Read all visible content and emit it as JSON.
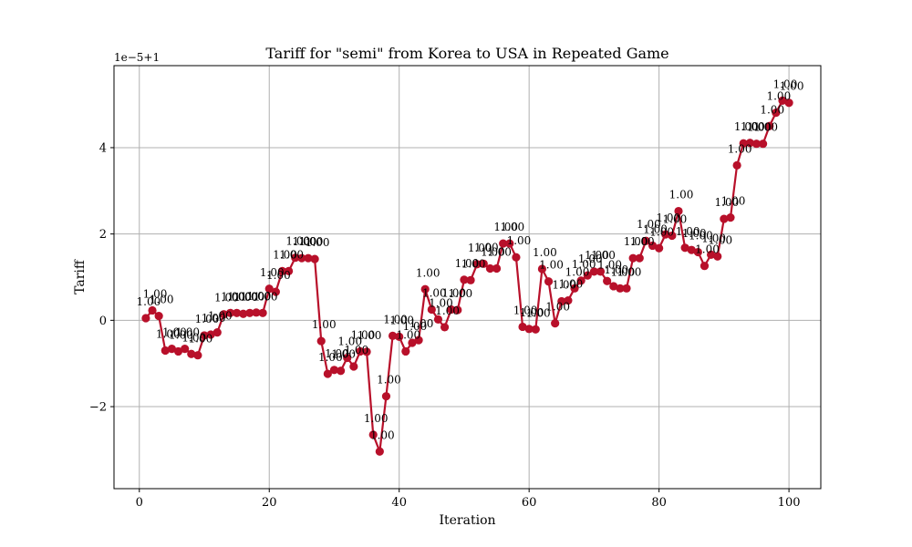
{
  "chart_data": {
    "type": "line",
    "title": "Tariff for \"semi\" from Korea to USA in Repeated Game",
    "xlabel": "Iteration",
    "ylabel": "Tariff",
    "y_offset_text": "1e−5+1",
    "xlim": [
      -3.9,
      104.9
    ],
    "ylim": [
      -3.9,
      5.9
    ],
    "x_ticks": [
      0,
      20,
      40,
      60,
      80,
      100
    ],
    "x_tick_labels": [
      "0",
      "20",
      "40",
      "60",
      "80",
      "100"
    ],
    "y_ticks": [
      -2,
      0,
      2,
      4
    ],
    "y_tick_labels": [
      "−2",
      "0",
      "2",
      "4"
    ],
    "grid": true,
    "line_color": "#b8102a",
    "point_label": "1.00",
    "series": [
      {
        "x": [
          1,
          2,
          3,
          4,
          5,
          6,
          7,
          8,
          9,
          10,
          11,
          12,
          13,
          14,
          15,
          16,
          17,
          18,
          19,
          20,
          21,
          22,
          23,
          24,
          25,
          26,
          27,
          28,
          29,
          30,
          31,
          32,
          33,
          34,
          35,
          36,
          37,
          38,
          39,
          40,
          41,
          42,
          43,
          44,
          45,
          46,
          47,
          48,
          49,
          50,
          51,
          52,
          53,
          54,
          55,
          56,
          57,
          58,
          59,
          60,
          61,
          62,
          63,
          64,
          65,
          66,
          67,
          68,
          69,
          70,
          71,
          72,
          73,
          74,
          75,
          76,
          77,
          78,
          79,
          80,
          81,
          82,
          83,
          84,
          85,
          86,
          87,
          88,
          89,
          90,
          91,
          92,
          93,
          94,
          95,
          96,
          97,
          98,
          99,
          100
        ],
        "values": [
          0.05,
          0.23,
          0.1,
          -0.7,
          -0.66,
          -0.72,
          -0.66,
          -0.78,
          -0.81,
          -0.35,
          -0.33,
          -0.28,
          0.14,
          0.17,
          0.17,
          0.15,
          0.17,
          0.18,
          0.17,
          0.73,
          0.66,
          1.14,
          1.14,
          1.45,
          1.44,
          1.44,
          1.42,
          -0.48,
          -1.24,
          -1.15,
          -1.17,
          -0.87,
          -1.07,
          -0.72,
          -0.73,
          -2.65,
          -3.04,
          -1.76,
          -0.36,
          -0.38,
          -0.72,
          -0.52,
          -0.46,
          0.72,
          0.25,
          0.02,
          -0.16,
          0.25,
          0.24,
          0.94,
          0.93,
          1.3,
          1.31,
          1.2,
          1.2,
          1.78,
          1.78,
          1.46,
          -0.15,
          -0.2,
          -0.21,
          1.19,
          0.9,
          -0.07,
          0.44,
          0.46,
          0.74,
          0.92,
          1.04,
          1.13,
          1.13,
          0.91,
          0.79,
          0.74,
          0.74,
          1.44,
          1.44,
          1.84,
          1.73,
          1.67,
          1.99,
          1.96,
          2.53,
          1.68,
          1.63,
          1.58,
          1.26,
          1.52,
          1.48,
          2.35,
          2.38,
          3.59,
          4.1,
          4.11,
          4.09,
          4.09,
          4.5,
          4.81,
          5.09,
          5.04
        ]
      }
    ]
  }
}
